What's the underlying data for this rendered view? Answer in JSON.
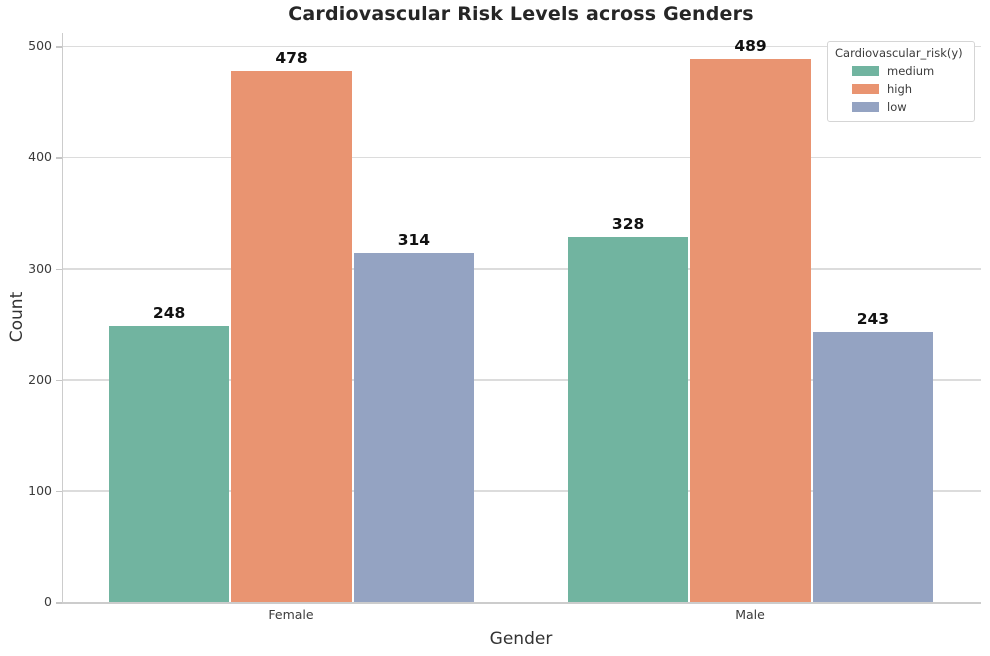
{
  "chart_data": {
    "type": "bar",
    "title": "Cardiovascular Risk Levels across Genders",
    "xlabel": "Gender",
    "ylabel": "Count",
    "categories": [
      "Female",
      "Male"
    ],
    "series": [
      {
        "name": "medium",
        "color": "#71b4a0",
        "values": [
          248,
          328
        ]
      },
      {
        "name": "high",
        "color": "#e99471",
        "values": [
          478,
          489
        ]
      },
      {
        "name": "low",
        "color": "#94a3c2",
        "values": [
          314,
          243
        ]
      }
    ],
    "yticks": [
      0,
      100,
      200,
      300,
      400,
      500
    ],
    "ylim": [
      0,
      512
    ],
    "grid": true,
    "bar_value_labels": true,
    "legend": {
      "title": "Cardiovascular_risk(y)",
      "position": "upper right"
    },
    "grid_color": "#dcdcdc",
    "axis_color": "#cccccc",
    "title_color": "#262626",
    "text_color": "#3b3b3b"
  }
}
